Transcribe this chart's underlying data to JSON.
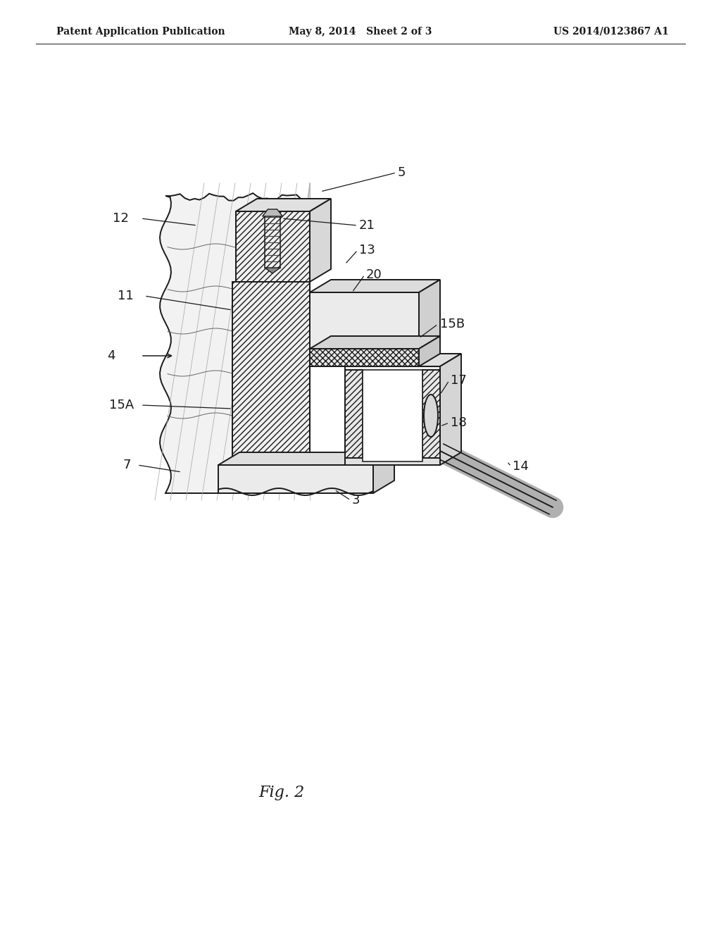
{
  "bg_color": "#ffffff",
  "lc": "#1a1a1a",
  "header_left": "Patent Application Publication",
  "header_mid": "May 8, 2014   Sheet 2 of 3",
  "header_right": "US 2014/0123867 A1",
  "fig_label": "Fig. 2",
  "lw": 1.4
}
